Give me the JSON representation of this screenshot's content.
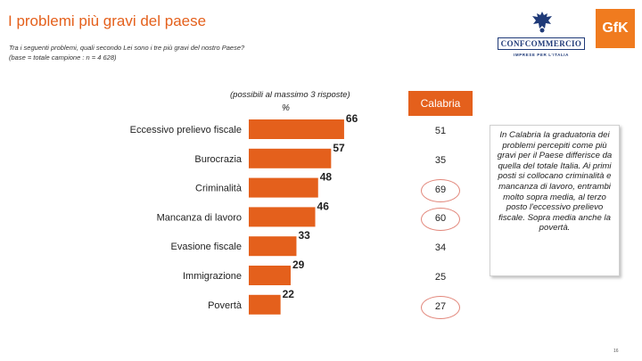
{
  "header": {
    "title": "I problemi più gravi del paese",
    "question": "Tra i seguenti problemi, quali secondo Lei sono i tre più gravi del nostro Paese?",
    "base": "(base = totale campione : n = 4 628)"
  },
  "logos": {
    "confcommercio": "CONFCOMMERCIO",
    "confcommercio_tag": "IMPRESE PER L'ITALIA",
    "gfk": "GfK"
  },
  "chart_note": "(possibili al massimo 3 risposte)",
  "unit_label": "%",
  "region": {
    "label": "Calabria",
    "values": [
      "51",
      "35",
      "69",
      "60",
      "34",
      "25",
      "27"
    ],
    "circled": [
      false,
      false,
      true,
      true,
      false,
      false,
      true
    ]
  },
  "chart_data": {
    "type": "bar",
    "orientation": "horizontal",
    "title": "I problemi più gravi del paese",
    "categories": [
      "Eccessivo prelievo fiscale",
      "Burocrazia",
      "Criminalità",
      "Mancanza di lavoro",
      "Evasione fiscale",
      "Immigrazione",
      "Povertà"
    ],
    "values": [
      66,
      57,
      48,
      46,
      33,
      29,
      22
    ],
    "value_labels": [
      "66",
      "57",
      "48",
      "46",
      "33",
      "29",
      "22"
    ],
    "xlabel": "%",
    "ylabel": "",
    "xlim": [
      0,
      70
    ],
    "color": "#e4601c"
  },
  "side_note": "In Calabria la graduatoria dei problemi percepiti come più gravi per il Paese differisce da quella del totale Italia. Ai primi posti si collocano criminalità e mancanza di lavoro, entrambi molto sopra media, al terzo posto l'eccessivo prelievo fiscale. Sopra media anche la povertà.",
  "page_number": "16"
}
